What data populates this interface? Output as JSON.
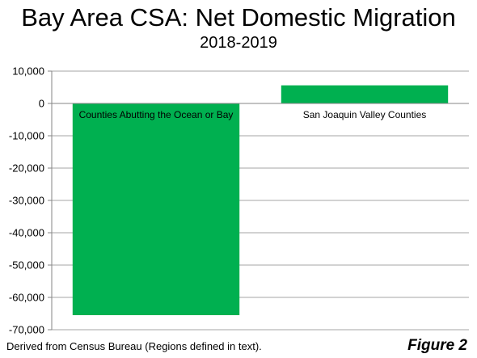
{
  "chart_data": {
    "type": "bar",
    "title": "Bay Area CSA: Net Domestic Migration",
    "subtitle": "2018-2019",
    "categories": [
      "Counties Abutting the Ocean or Bay",
      "San Joaquin Valley Counties"
    ],
    "values": [
      -65500,
      5600
    ],
    "ylim": [
      -70000,
      10000
    ],
    "yticks": [
      10000,
      0,
      -10000,
      -20000,
      -30000,
      -40000,
      -50000,
      -60000,
      -70000
    ],
    "ytick_labels": [
      "10,000",
      "0",
      "-10,000",
      "-20,000",
      "-30,000",
      "-40,000",
      "-50,000",
      "-60,000",
      "-70,000"
    ],
    "grid": true,
    "legend": "none",
    "bar_color": "#00b050"
  },
  "footer": {
    "source": "Derived from Census Bureau (Regions defined in text).",
    "figure": "Figure 2"
  }
}
